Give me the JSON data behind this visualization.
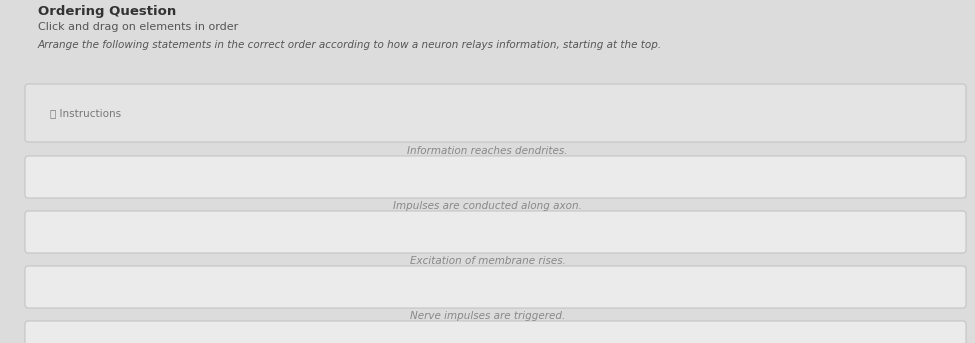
{
  "title": "Ordering Question",
  "subtitle": "Click and drag on elements in order",
  "instruction_text": "Arrange the following statements in the correct order according to how a neuron relays information, starting at the top.",
  "instructions_label": "ⓘ Instructions",
  "items": [
    "Information reaches dendrites.",
    "Impulses are conducted along axon.",
    "Excitation of membrane rises.",
    "Nerve impulses are triggered."
  ],
  "bg_color": "#dcdcdc",
  "box_bg_color": "#ebebeb",
  "box_border_color": "#c0c0c0",
  "top_box_bg": "#e4e4e4",
  "title_color": "#333333",
  "subtitle_color": "#555555",
  "instructions_color": "#777777",
  "item_text_color": "#888888",
  "figsize": [
    9.75,
    3.43
  ],
  "dpi": 100
}
